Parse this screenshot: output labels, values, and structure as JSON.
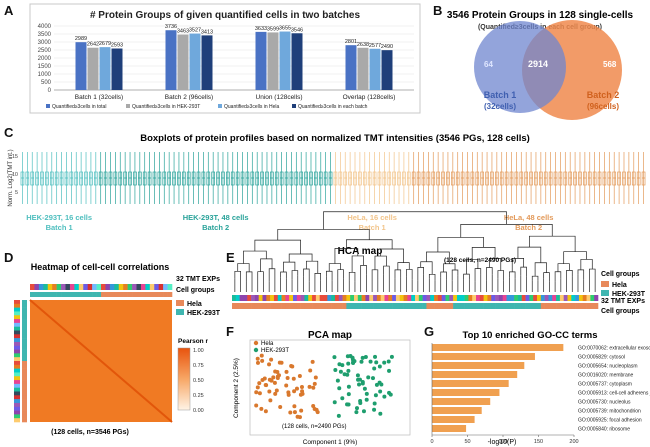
{
  "panels": {
    "A": {
      "label": "A",
      "title": "# Protein Groups of given quantified cells in two batches",
      "chart_data": {
        "type": "bar",
        "categories": [
          "Batch 1 (32cells)",
          "Batch 2 (96cells)",
          "Union (128cells)",
          "Overlap (128cells)"
        ],
        "ylim": [
          0,
          4000
        ],
        "yticks": [
          0,
          500,
          1000,
          1500,
          2000,
          2500,
          3000,
          3500,
          4000
        ],
        "series": [
          {
            "name": "Quantified≥3cells in total",
            "color": "#4a72c4",
            "values": [
              2989,
              3736,
              3633,
              2801
            ]
          },
          {
            "name": "Quantified≥3cells in HEK-293T",
            "color": "#a9a9a9",
            "values": [
              2642,
              3463,
              3599,
              2638
            ]
          },
          {
            "name": "Quantified≥3cells in Hela",
            "color": "#6fa8dc",
            "values": [
              2679,
              3527,
              3655,
              2577
            ]
          },
          {
            "name": "Quantified≥3cells in each batch",
            "color": "#1f3f7a",
            "values": [
              2593,
              3413,
              3546,
              2490
            ]
          }
        ]
      }
    },
    "B": {
      "label": "B",
      "title": "3546 Protein Groups in 128 single-cells",
      "subtitle": "(Quantified≥3cells in each cell group)",
      "left_only": "64",
      "overlap": "2914",
      "right_only": "568",
      "left_label_1": "Batch 1",
      "left_label_2": "(32cells)",
      "right_label_1": "Batch 2",
      "right_label_2": "(96cells)",
      "left_color": "#5b7fcf",
      "right_color": "#e8743b"
    },
    "C": {
      "label": "C",
      "title": "Boxplots of protein profiles based on normalized TMT intensities (3546 PGs, 128 cells)",
      "ylabel": "Norm. Log2(TMT int.)",
      "yticks": [
        "15",
        "10",
        "5"
      ],
      "groups": [
        {
          "line1": "HEK-293T, 16 cells",
          "line2": "Batch 1",
          "count": 16,
          "color": "#4fbfbf"
        },
        {
          "line1": "HEK-293T, 48 cells",
          "line2": "Batch 2",
          "count": 48,
          "color": "#2aa39a"
        },
        {
          "line1": "HeLa, 16 cells",
          "line2": "Batch 1",
          "count": 16,
          "color": "#f2c48a"
        },
        {
          "line1": "HeLa, 48 cells",
          "line2": "Batch 2",
          "count": 48,
          "color": "#e39a5a"
        }
      ]
    },
    "D": {
      "label": "D",
      "title": "Heatmap of cell-cell correlations",
      "legend_exps": "32 TMT EXPs",
      "legend_groups": "Cell groups",
      "hela": "Hela",
      "hek": "HEK-293T",
      "colorbar_title": "Pearson r",
      "colorbar_ticks": [
        "1.00",
        "0.75",
        "0.50",
        "0.25",
        "0.00"
      ],
      "footer": "(128 cells, n=3546 PGs)"
    },
    "E": {
      "label": "E",
      "title": "HCA map",
      "note": "(128 cells, n=2490 PGs)",
      "legend_title": "Cell groups",
      "hela": "Hela",
      "hek": "HEK-293T",
      "row1_label": "32 TMT EXPs",
      "row2_label": "Cell groups"
    },
    "F": {
      "label": "F",
      "title": "PCA map",
      "xlabel": "Component 1 (9%)",
      "ylabel": "Component 2 (2.5%)",
      "note": "(128 cells, n=2490 PGs)",
      "legend_hela": "Hela",
      "legend_hek": "HEK-293T",
      "hela_color": "#d9782d",
      "hek_color": "#1e9e6e"
    },
    "G": {
      "label": "G",
      "title": "Top 10 enriched GO-CC terms",
      "xlabel": "-log10(P)",
      "chart_data": {
        "type": "bar",
        "orientation": "horizontal",
        "xlim": [
          0,
          200
        ],
        "xticks": [
          0,
          50,
          100,
          150,
          200
        ],
        "color": "#f0a050",
        "categories": [
          "GO:0070062: extracellular exosome",
          "GO:0005829: cytosol",
          "GO:0005654: nucleoplasm",
          "GO:0016020: membrane",
          "GO:0005737: cytoplasm",
          "GO:0005913: cell-cell adherens junction",
          "GO:0005730: nucleolus",
          "GO:0005739: mitochondrion",
          "GO:0005925: focal adhesion",
          "GO:0005840: ribosome"
        ],
        "values": [
          185,
          145,
          130,
          120,
          108,
          95,
          82,
          70,
          60,
          48
        ]
      }
    }
  }
}
